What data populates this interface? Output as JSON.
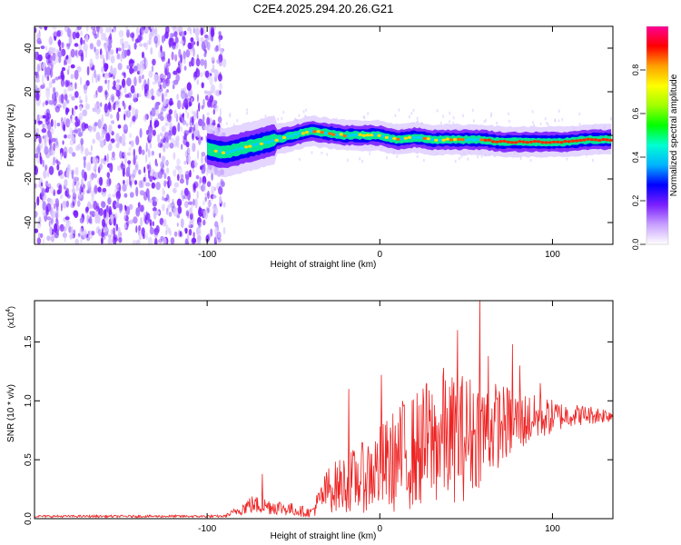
{
  "title": "C2E4.2025.294.20.26.G21",
  "chart_data": [
    {
      "type": "heatmap",
      "name": "spectrogram",
      "xlabel": "Height of straight line (km)",
      "ylabel": "Frequency (Hz)",
      "xlim": [
        -200,
        135
      ],
      "ylim": [
        -50,
        50
      ],
      "xticks": [
        -100,
        0,
        100
      ],
      "yticks": [
        -40,
        -20,
        0,
        20,
        40
      ],
      "noise_region_x": [
        -200,
        -90
      ],
      "signal_start_x": -100,
      "signal_track": [
        {
          "x": -100,
          "f": -6
        },
        {
          "x": -90,
          "f": -8
        },
        {
          "x": -80,
          "f": -6
        },
        {
          "x": -70,
          "f": -4
        },
        {
          "x": -60,
          "f": -2
        },
        {
          "x": -50,
          "f": 0
        },
        {
          "x": -40,
          "f": 2
        },
        {
          "x": -30,
          "f": 1
        },
        {
          "x": -20,
          "f": 0
        },
        {
          "x": -10,
          "f": 0
        },
        {
          "x": 0,
          "f": 0
        },
        {
          "x": 10,
          "f": -2
        },
        {
          "x": 20,
          "f": -1
        },
        {
          "x": 30,
          "f": -2
        },
        {
          "x": 40,
          "f": -2
        },
        {
          "x": 50,
          "f": -2
        },
        {
          "x": 60,
          "f": -2
        },
        {
          "x": 70,
          "f": -3
        },
        {
          "x": 80,
          "f": -3
        },
        {
          "x": 90,
          "f": -3
        },
        {
          "x": 100,
          "f": -3
        },
        {
          "x": 110,
          "f": -3
        },
        {
          "x": 120,
          "f": -2
        },
        {
          "x": 135,
          "f": -2
        }
      ],
      "colorbar": {
        "label": "Normalized spectral amplitude",
        "range": [
          0,
          1
        ],
        "ticks": [
          0.0,
          0.2,
          0.4,
          0.6,
          0.8
        ],
        "tick_labels": [
          "0.0",
          "0.2",
          "0.4",
          "0.6",
          "0.8"
        ],
        "colors": [
          "#ffffff",
          "#c8a0ff",
          "#7a1eff",
          "#0000ff",
          "#00b4ff",
          "#00ffd2",
          "#00ff00",
          "#a0ff00",
          "#ffff00",
          "#ffa000",
          "#ff0000",
          "#ff0096"
        ]
      }
    },
    {
      "type": "line",
      "name": "snr",
      "xlabel": "Height of straight line (km)",
      "ylabel": "SNR (10 * v/v)",
      "multiplier_label": "(x10",
      "multiplier_exp": "4",
      "multiplier_close": ")",
      "xlim": [
        -200,
        135
      ],
      "ylim": [
        0,
        1.85
      ],
      "xticks": [
        -100,
        0,
        100
      ],
      "yticks": [
        0.0,
        0.5,
        1.0,
        1.5
      ],
      "ytick_labels": [
        "0.0",
        "0.5",
        "1.0",
        "1.5"
      ],
      "color": "#ee2222",
      "envelope": [
        {
          "x": -200,
          "mean": 0.02,
          "amp": 0.01
        },
        {
          "x": -90,
          "mean": 0.02,
          "amp": 0.01
        },
        {
          "x": -85,
          "mean": 0.05,
          "amp": 0.03
        },
        {
          "x": -75,
          "mean": 0.12,
          "amp": 0.08
        },
        {
          "x": -60,
          "mean": 0.1,
          "amp": 0.07
        },
        {
          "x": -40,
          "mean": 0.05,
          "amp": 0.04
        },
        {
          "x": -30,
          "mean": 0.25,
          "amp": 0.2
        },
        {
          "x": -10,
          "mean": 0.35,
          "amp": 0.3
        },
        {
          "x": 10,
          "mean": 0.5,
          "amp": 0.45
        },
        {
          "x": 30,
          "mean": 0.65,
          "amp": 0.55
        },
        {
          "x": 50,
          "mean": 0.7,
          "amp": 0.55
        },
        {
          "x": 70,
          "mean": 0.8,
          "amp": 0.35
        },
        {
          "x": 90,
          "mean": 0.85,
          "amp": 0.2
        },
        {
          "x": 110,
          "mean": 0.88,
          "amp": 0.1
        },
        {
          "x": 135,
          "mean": 0.88,
          "amp": 0.06
        }
      ],
      "spikes": [
        {
          "x": -68,
          "y": 0.38
        },
        {
          "x": -18,
          "y": 1.1
        },
        {
          "x": 1,
          "y": 1.22
        },
        {
          "x": 13,
          "y": 1.0
        },
        {
          "x": 27,
          "y": 1.15
        },
        {
          "x": 37,
          "y": 1.28
        },
        {
          "x": 45,
          "y": 1.6
        },
        {
          "x": 58,
          "y": 1.88
        },
        {
          "x": 63,
          "y": 1.38
        },
        {
          "x": 77,
          "y": 1.48
        },
        {
          "x": 81,
          "y": 1.3
        },
        {
          "x": 93,
          "y": 1.15
        }
      ]
    }
  ]
}
